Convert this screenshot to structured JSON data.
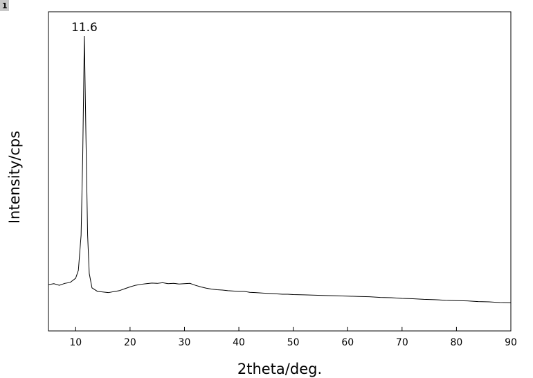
{
  "badge": "1",
  "chart_data": {
    "type": "line",
    "xlabel": "2theta/deg.",
    "ylabel": "Intensity/cps",
    "xlim": [
      5,
      90
    ],
    "xticks": [
      10,
      20,
      30,
      40,
      50,
      60,
      70,
      80,
      90
    ],
    "ylim": [
      0,
      100
    ],
    "color": "#000000",
    "x": [
      5,
      6,
      7,
      8,
      9,
      10,
      10.5,
      11,
      11.3,
      11.6,
      11.9,
      12.2,
      12.5,
      13,
      14,
      15,
      16,
      17,
      18,
      19,
      20,
      21,
      22,
      23,
      24,
      25,
      26,
      27,
      28,
      29,
      30,
      31,
      32,
      33,
      34,
      35,
      36,
      37,
      38,
      39,
      40,
      41,
      42,
      43,
      44,
      45,
      46,
      47,
      48,
      49,
      50,
      52,
      54,
      56,
      58,
      60,
      62,
      64,
      66,
      68,
      70,
      72,
      74,
      76,
      78,
      80,
      82,
      84,
      86,
      88,
      90
    ],
    "values": [
      14.5,
      14.8,
      14.3,
      14.9,
      15.2,
      16.5,
      19,
      30,
      55,
      92.4,
      60,
      30,
      18,
      13.5,
      12.4,
      12.2,
      12.0,
      12.3,
      12.6,
      13.2,
      13.8,
      14.3,
      14.6,
      14.8,
      15.0,
      14.9,
      15.1,
      14.8,
      14.9,
      14.7,
      14.8,
      14.9,
      14.3,
      13.8,
      13.4,
      13.1,
      12.9,
      12.8,
      12.6,
      12.5,
      12.4,
      12.4,
      12.1,
      12.0,
      11.9,
      11.8,
      11.7,
      11.6,
      11.5,
      11.5,
      11.4,
      11.3,
      11.2,
      11.1,
      11.0,
      10.9,
      10.8,
      10.7,
      10.5,
      10.4,
      10.2,
      10.1,
      9.9,
      9.8,
      9.6,
      9.5,
      9.4,
      9.2,
      9.1,
      8.9,
      8.8
    ],
    "annotations": [
      {
        "label": "11.6",
        "x": 11.6,
        "y": 92.4
      }
    ]
  }
}
